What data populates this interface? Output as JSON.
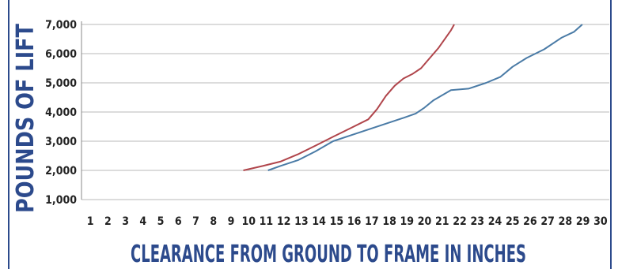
{
  "chart_data": {
    "type": "line",
    "title": "",
    "xlabel": "CLEARANCE FROM GROUND TO FRAME IN INCHES",
    "ylabel": "POUNDS OF LIFT",
    "xlim": [
      0,
      30
    ],
    "ylim": [
      1000,
      7000
    ],
    "x_ticks": [
      "1",
      "2",
      "3",
      "4",
      "5",
      "6",
      "7",
      "8",
      "9",
      "10",
      "11",
      "12",
      "13",
      "14",
      "15",
      "16",
      "17",
      "18",
      "19",
      "20",
      "21",
      "22",
      "23",
      "24",
      "25",
      "26",
      "27",
      "28",
      "29",
      "30"
    ],
    "y_ticks": [
      "1,000",
      "2,000",
      "3,000",
      "4,000",
      "5,000",
      "6,000",
      "7,000"
    ],
    "grid": true,
    "series": [
      {
        "color": "#b0454b",
        "points": [
          [
            9.2,
            2000
          ],
          [
            10.3,
            2150
          ],
          [
            11.3,
            2300
          ],
          [
            12.3,
            2550
          ],
          [
            13.3,
            2850
          ],
          [
            14.3,
            3150
          ],
          [
            15.3,
            3450
          ],
          [
            16.3,
            3750
          ],
          [
            16.8,
            4100
          ],
          [
            17.3,
            4550
          ],
          [
            17.8,
            4900
          ],
          [
            18.3,
            5150
          ],
          [
            18.8,
            5300
          ],
          [
            19.3,
            5500
          ],
          [
            19.8,
            5850
          ],
          [
            20.3,
            6200
          ],
          [
            21.0,
            6800
          ],
          [
            22.2,
            8100
          ]
        ]
      },
      {
        "color": "#4a7ba6",
        "points": [
          [
            10.6,
            2000
          ],
          [
            11.3,
            2150
          ],
          [
            12.3,
            2350
          ],
          [
            13.3,
            2650
          ],
          [
            14.3,
            3000
          ],
          [
            15.3,
            3200
          ],
          [
            16.3,
            3400
          ],
          [
            17.3,
            3600
          ],
          [
            18.3,
            3800
          ],
          [
            19.0,
            3950
          ],
          [
            19.5,
            4150
          ],
          [
            20.0,
            4400
          ],
          [
            21.0,
            4750
          ],
          [
            22.0,
            4800
          ],
          [
            23.0,
            5000
          ],
          [
            23.8,
            5200
          ],
          [
            24.5,
            5550
          ],
          [
            25.3,
            5850
          ],
          [
            26.3,
            6150
          ],
          [
            27.3,
            6550
          ],
          [
            28.0,
            6750
          ],
          [
            29.3,
            7450
          ]
        ]
      }
    ]
  }
}
